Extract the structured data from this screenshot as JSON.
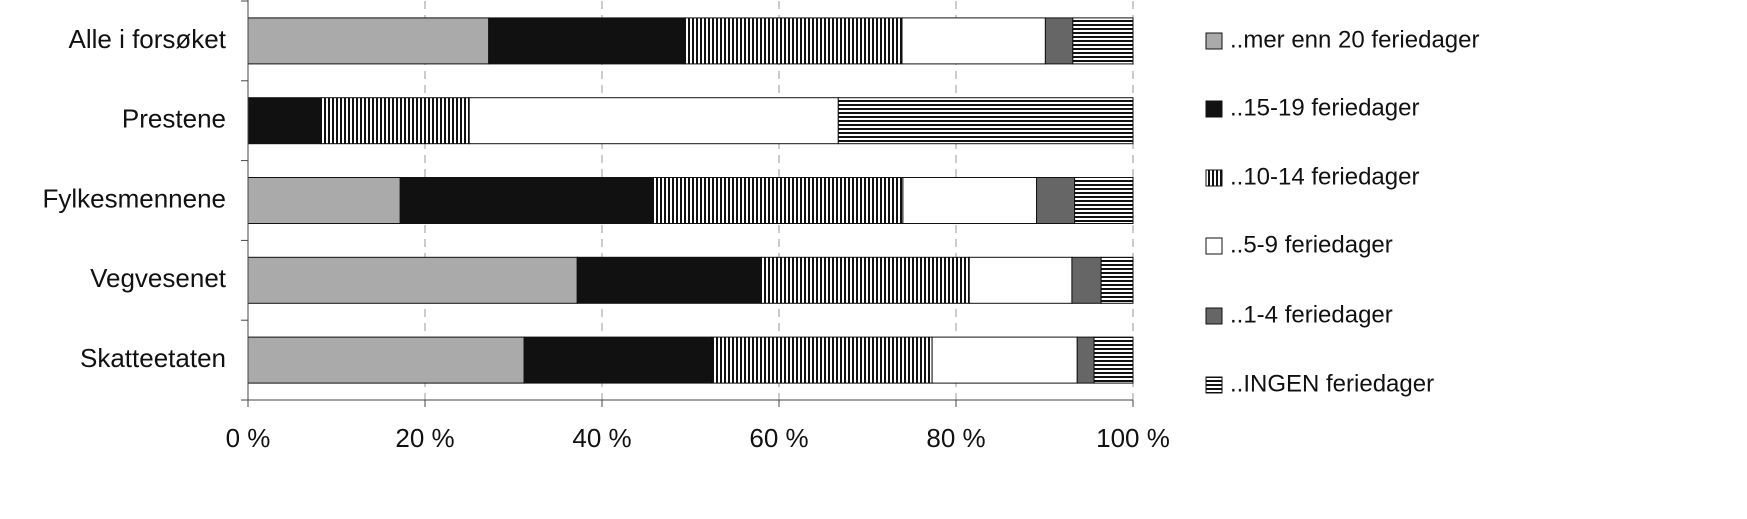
{
  "chart_data": {
    "type": "stacked-bar-horizontal",
    "categories": [
      "Alle i forsøket",
      "Prestene",
      "Fylkesmennene",
      "Vegvesenet",
      "Skatteetaten"
    ],
    "series": [
      {
        "name": "..mer enn 20 feriedager",
        "color": "#aaaaaa",
        "pattern": "solid",
        "values": [
          27.2,
          0,
          17.2,
          37.2,
          31.2
        ]
      },
      {
        "name": "..15-19 feriedager",
        "color": "#111111",
        "pattern": "solid",
        "values": [
          22.1,
          8.3,
          28.6,
          20.8,
          21.2
        ]
      },
      {
        "name": "..10-14 feriedager",
        "color": "#111111",
        "pattern": "vertical-stripes",
        "values": [
          24.6,
          16.7,
          28.2,
          23.5,
          24.9
        ]
      },
      {
        "name": "..5-9 feriedager",
        "color": "#ffffff",
        "pattern": "solid",
        "values": [
          16.2,
          41.7,
          15.1,
          11.6,
          16.4
        ]
      },
      {
        "name": "..1-4 feriedager",
        "color": "#666666",
        "pattern": "solid",
        "values": [
          3.1,
          0,
          4.3,
          3.3,
          1.9
        ]
      },
      {
        "name": "..INGEN feriedager",
        "color": "#111111",
        "pattern": "horizontal-stripes",
        "values": [
          6.8,
          33.3,
          6.6,
          3.6,
          4.4
        ]
      }
    ],
    "xlim": [
      0,
      100
    ],
    "xticks": [
      {
        "value": 0,
        "label": "0 %"
      },
      {
        "value": 20,
        "label": "20 %"
      },
      {
        "value": 40,
        "label": "40 %"
      },
      {
        "value": 60,
        "label": "60 %"
      },
      {
        "value": 80,
        "label": "80 %"
      },
      {
        "value": 100,
        "label": "100 %"
      }
    ],
    "grid": true,
    "legend": "right"
  }
}
